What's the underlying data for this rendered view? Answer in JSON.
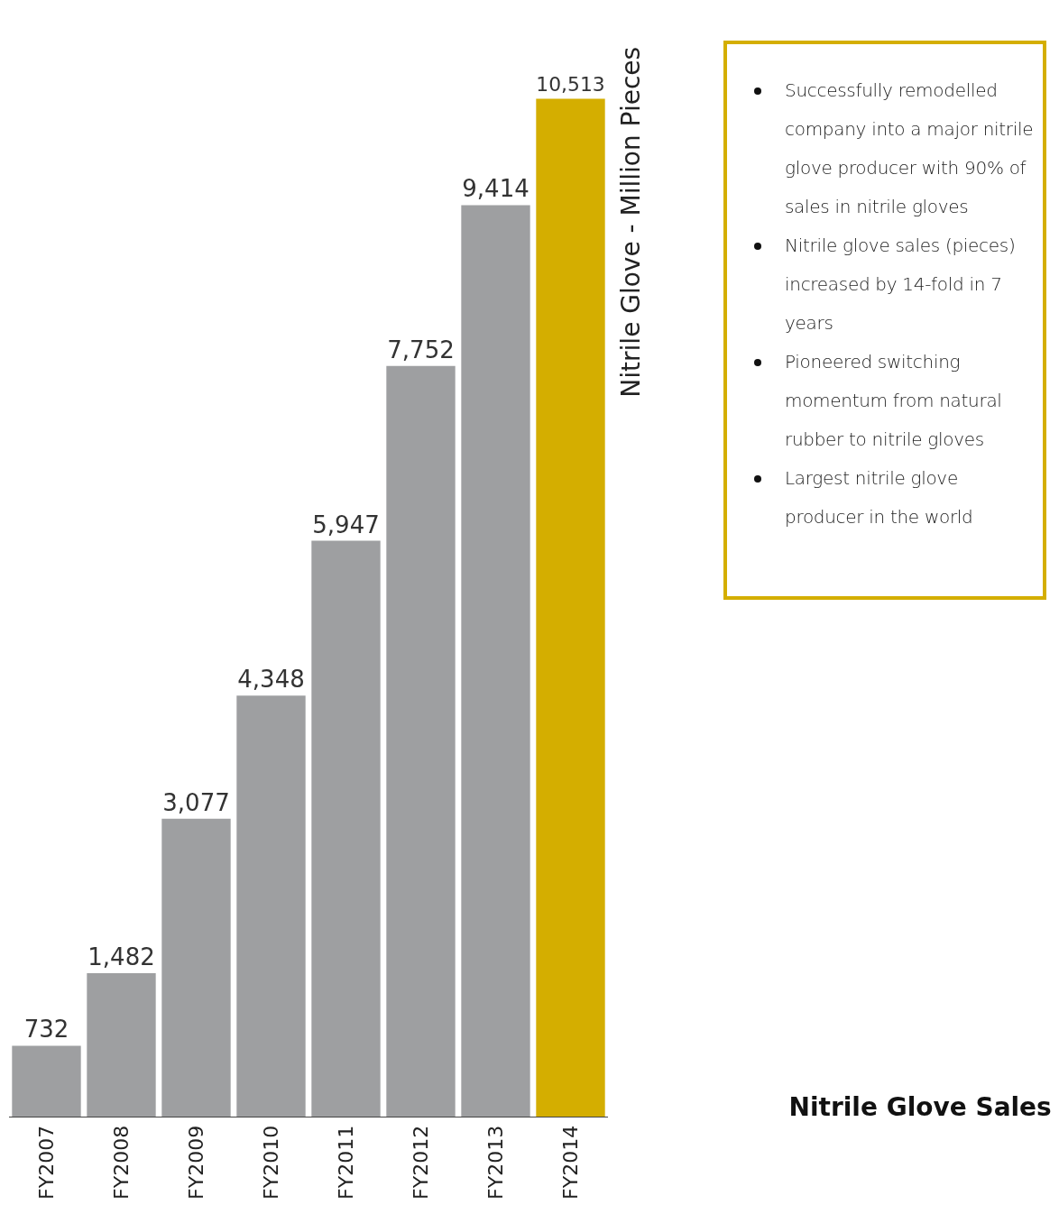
{
  "chart_data": {
    "type": "bar",
    "title": "Nitrile Glove Sales",
    "ylabel": "Nitrile Glove - Million Pieces",
    "categories": [
      "FY2007",
      "FY2008",
      "FY2009",
      "FY2010",
      "FY2011",
      "FY2012",
      "FY2013",
      "FY2014"
    ],
    "values": [
      732,
      1482,
      3077,
      4348,
      5947,
      7752,
      9414,
      10513
    ],
    "colors": [
      "#9e9fa1",
      "#9e9fa1",
      "#9e9fa1",
      "#9e9fa1",
      "#9e9fa1",
      "#9e9fa1",
      "#9e9fa1",
      "#d4ae00"
    ],
    "value_labels": [
      "732",
      "1,482",
      "3,077",
      "4,348",
      "5,947",
      "7,752",
      "9,414",
      "10,513"
    ],
    "grid": false,
    "annotations": [
      "Successfully remodelled company into a major nitrile glove producer with 90% of sales in nitrile gloves",
      "Nitrile glove sales (pieces) increased by 14-fold in 7 years",
      "Pioneered switching momentum from natural rubber to nitrile gloves",
      "Largest nitrile glove producer in the world"
    ]
  }
}
